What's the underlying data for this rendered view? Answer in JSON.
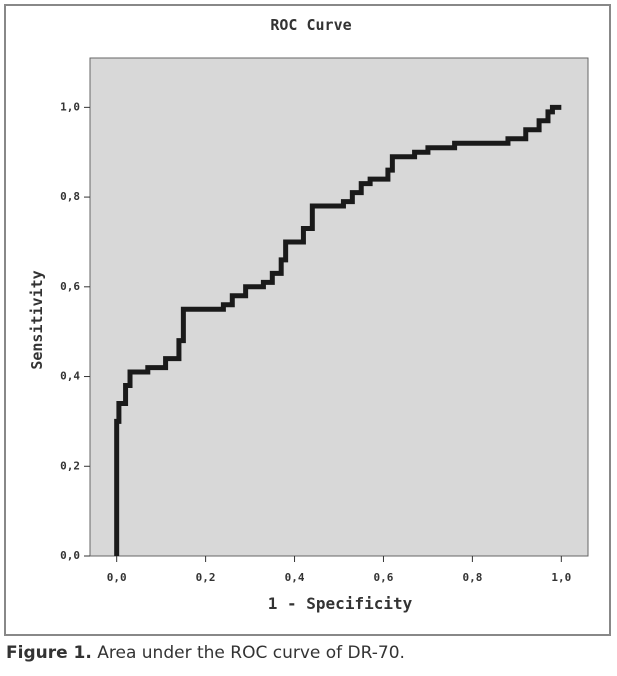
{
  "chart_data": {
    "type": "line",
    "title": "ROC Curve",
    "x_label": "1 - Specificity",
    "y_label": "Sensitivity",
    "xlim": [
      -0.06,
      1.06
    ],
    "ylim": [
      0,
      1.11
    ],
    "xticks": [
      {
        "value": 0,
        "label": "0,0"
      },
      {
        "value": 0.2,
        "label": "0,2"
      },
      {
        "value": 0.4,
        "label": "0,4"
      },
      {
        "value": 0.6,
        "label": "0,6"
      },
      {
        "value": 0.8,
        "label": "0,8"
      },
      {
        "value": 1,
        "label": "1,0"
      }
    ],
    "yticks": [
      {
        "value": 0,
        "label": "0,0"
      },
      {
        "value": 0.2,
        "label": "0,2"
      },
      {
        "value": 0.4,
        "label": "0,4"
      },
      {
        "value": 0.6,
        "label": "0,6"
      },
      {
        "value": 0.8,
        "label": "0,8"
      },
      {
        "value": 1,
        "label": "1,0"
      }
    ],
    "grid": false,
    "color": "#1a1a1a",
    "x": [
      0,
      0,
      0.005,
      0.005,
      0.02,
      0.02,
      0.03,
      0.03,
      0.07,
      0.07,
      0.11,
      0.11,
      0.14,
      0.14,
      0.15,
      0.15,
      0.24,
      0.24,
      0.26,
      0.26,
      0.29,
      0.29,
      0.33,
      0.33,
      0.35,
      0.35,
      0.37,
      0.37,
      0.38,
      0.38,
      0.42,
      0.42,
      0.44,
      0.44,
      0.51,
      0.51,
      0.53,
      0.53,
      0.55,
      0.55,
      0.57,
      0.57,
      0.61,
      0.61,
      0.62,
      0.62,
      0.67,
      0.67,
      0.7,
      0.7,
      0.76,
      0.76,
      0.88,
      0.88,
      0.92,
      0.92,
      0.95,
      0.95,
      0.97,
      0.97,
      0.98,
      0.98,
      1.0
    ],
    "values": [
      0,
      0.3,
      0.3,
      0.34,
      0.34,
      0.38,
      0.38,
      0.41,
      0.41,
      0.42,
      0.42,
      0.44,
      0.44,
      0.48,
      0.48,
      0.55,
      0.55,
      0.56,
      0.56,
      0.58,
      0.58,
      0.6,
      0.6,
      0.61,
      0.61,
      0.63,
      0.63,
      0.66,
      0.66,
      0.7,
      0.7,
      0.73,
      0.73,
      0.78,
      0.78,
      0.79,
      0.79,
      0.81,
      0.81,
      0.83,
      0.83,
      0.84,
      0.84,
      0.86,
      0.86,
      0.89,
      0.89,
      0.9,
      0.9,
      0.91,
      0.91,
      0.92,
      0.92,
      0.93,
      0.93,
      0.95,
      0.95,
      0.97,
      0.97,
      0.99,
      0.99,
      1.0,
      1.0
    ]
  },
  "caption": {
    "label": "Figure 1.",
    "text": "Area under the ROC curve of DR-70."
  }
}
